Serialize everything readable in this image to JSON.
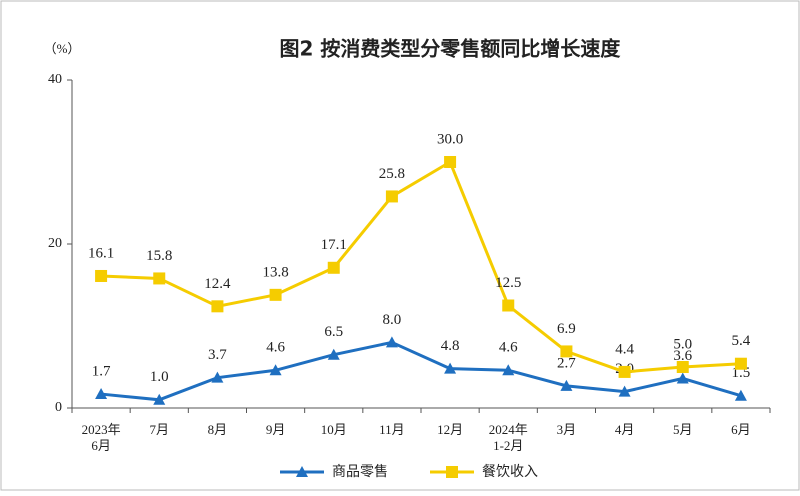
{
  "chart_data": {
    "type": "line",
    "title": "图2 按消费类型分零售额同比增长速度",
    "y_unit": "（%）",
    "categories": [
      "2023年\n6月",
      "7月",
      "8月",
      "9月",
      "10月",
      "11月",
      "12月",
      "2024年\n1-2月",
      "3月",
      "4月",
      "5月",
      "6月"
    ],
    "ylim": [
      0,
      40
    ],
    "yticks": [
      0,
      20,
      40
    ],
    "series": [
      {
        "name": "商品零售",
        "color": "#1f6fc0",
        "marker": "triangle",
        "values": [
          1.7,
          1.0,
          3.7,
          4.6,
          6.5,
          8.0,
          4.8,
          4.6,
          2.7,
          2.0,
          3.6,
          1.5
        ],
        "value_labels": [
          "1.7",
          "1.0",
          "3.7",
          "4.6",
          "6.5",
          "8.0",
          "4.8",
          "4.6",
          "2.7",
          "2.0",
          "3.6",
          "1.5"
        ]
      },
      {
        "name": "餐饮收入",
        "color": "#f5cc00",
        "marker": "square",
        "values": [
          16.1,
          15.8,
          12.4,
          13.8,
          17.1,
          25.8,
          30.0,
          12.5,
          6.9,
          4.4,
          5.0,
          5.4
        ],
        "value_labels": [
          "16.1",
          "15.8",
          "12.4",
          "13.8",
          "17.1",
          "25.8",
          "30.0",
          "12.5",
          "6.9",
          "4.4",
          "5.0",
          "5.4"
        ]
      }
    ]
  }
}
